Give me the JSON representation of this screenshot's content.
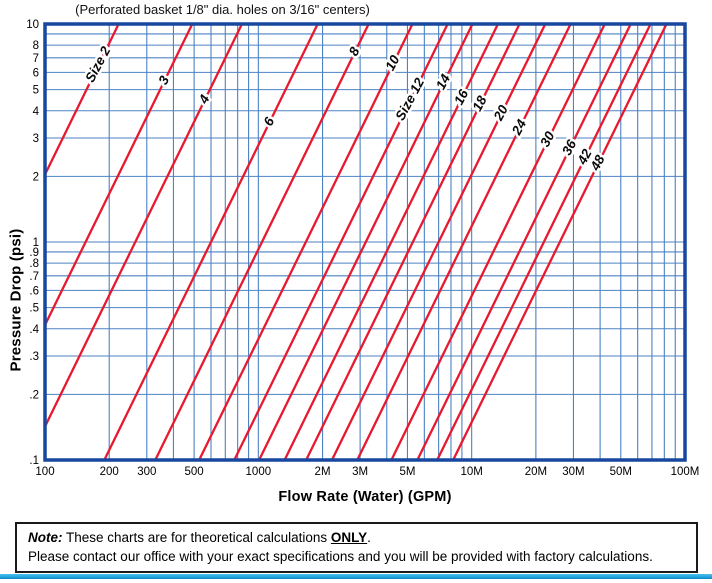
{
  "note": {
    "prefix": "Note:",
    "line1_before": " These charts are for theoretical calculations ",
    "line1_emph": "ONLY",
    "line1_after": ".",
    "line2": "Please contact our office with your exact specifications and you will be provided with factory calculations."
  },
  "chart_data": {
    "type": "line",
    "title": "(Perforated basket 1/8\" dia. holes on 3/16\" centers)",
    "xlabel": "Flow Rate (Water) (GPM)",
    "ylabel": "Pressure Drop (psi)",
    "x_scale": "log",
    "y_scale": "log",
    "x_range_gpm": [
      100,
      100000
    ],
    "y_range_psi": [
      0.1,
      10
    ],
    "grid": true,
    "legend": "none",
    "relationship": "pressure_drop_psi = (flow_gpm / capacity_gpm_at_1psi)^2, straight lines of slope 2 on log-log axes",
    "x_ticks": [
      {
        "label": "100",
        "value": 100
      },
      {
        "label": "200",
        "value": 200
      },
      {
        "label": "300",
        "value": 300
      },
      {
        "label": "500",
        "value": 500
      },
      {
        "label": "1000",
        "value": 1000
      },
      {
        "label": "2M",
        "value": 2000
      },
      {
        "label": "3M",
        "value": 3000
      },
      {
        "label": "5M",
        "value": 5000
      },
      {
        "label": "10M",
        "value": 10000
      },
      {
        "label": "20M",
        "value": 20000
      },
      {
        "label": "30M",
        "value": 30000
      },
      {
        "label": "50M",
        "value": 50000
      },
      {
        "label": "100M",
        "value": 100000
      }
    ],
    "y_ticks": [
      {
        "label": "10",
        "value": 10
      },
      {
        "label": "8",
        "value": 8
      },
      {
        "label": "7",
        "value": 7
      },
      {
        "label": "6",
        "value": 6
      },
      {
        "label": "5",
        "value": 5
      },
      {
        "label": "4",
        "value": 4
      },
      {
        "label": "3",
        "value": 3
      },
      {
        "label": "2",
        "value": 2
      },
      {
        "label": "1",
        "value": 1
      },
      {
        "label": ".9",
        "value": 0.9
      },
      {
        "label": ".8",
        "value": 0.8
      },
      {
        "label": ".7",
        "value": 0.7
      },
      {
        "label": ".6",
        "value": 0.6
      },
      {
        "label": ".5",
        "value": 0.5
      },
      {
        "label": ".4",
        "value": 0.4
      },
      {
        "label": ".3",
        "value": 0.3
      },
      {
        "label": ".2",
        "value": 0.2
      },
      {
        "label": ".1",
        "value": 0.1
      }
    ],
    "series": [
      {
        "label": "Size 2",
        "size": 2,
        "capacity_gpm_at_1psi": 70,
        "label_at_psi": 6.5
      },
      {
        "label": "3",
        "size": 3,
        "capacity_gpm_at_1psi": 155,
        "label_at_psi": 5.5
      },
      {
        "label": "4",
        "size": 4,
        "capacity_gpm_at_1psi": 265,
        "label_at_psi": 4.5
      },
      {
        "label": "6",
        "size": 6,
        "capacity_gpm_at_1psi": 600,
        "label_at_psi": 3.55
      },
      {
        "label": "8",
        "size": 8,
        "capacity_gpm_at_1psi": 1040,
        "label_at_psi": 7.45
      },
      {
        "label": "10",
        "size": 10,
        "capacity_gpm_at_1psi": 1670,
        "label_at_psi": 6.6
      },
      {
        "label": "Size 12",
        "size": 12,
        "capacity_gpm_at_1psi": 2440,
        "label_at_psi": 4.5
      },
      {
        "label": "14",
        "size": 14,
        "capacity_gpm_at_1psi": 3190,
        "label_at_psi": 5.4
      },
      {
        "label": "16",
        "size": 16,
        "capacity_gpm_at_1psi": 4200,
        "label_at_psi": 4.6
      },
      {
        "label": "18",
        "size": 18,
        "capacity_gpm_at_1psi": 5300,
        "label_at_psi": 4.3
      },
      {
        "label": "20",
        "size": 20,
        "capacity_gpm_at_1psi": 7000,
        "label_at_psi": 3.9
      },
      {
        "label": "24",
        "size": 24,
        "capacity_gpm_at_1psi": 9200,
        "label_at_psi": 3.35
      },
      {
        "label": "30",
        "size": 30,
        "capacity_gpm_at_1psi": 13300,
        "label_at_psi": 2.95
      },
      {
        "label": "36",
        "size": 36,
        "capacity_gpm_at_1psi": 17600,
        "label_at_psi": 2.7
      },
      {
        "label": "42",
        "size": 42,
        "capacity_gpm_at_1psi": 21800,
        "label_at_psi": 2.45
      },
      {
        "label": "48",
        "size": 48,
        "capacity_gpm_at_1psi": 25900,
        "label_at_psi": 2.3
      }
    ],
    "colors": {
      "grid": "#4d82c3",
      "frame": "#17479e",
      "series_line": "#e8192f",
      "text": "#000000",
      "bottom_accent": "#29abe2"
    }
  }
}
